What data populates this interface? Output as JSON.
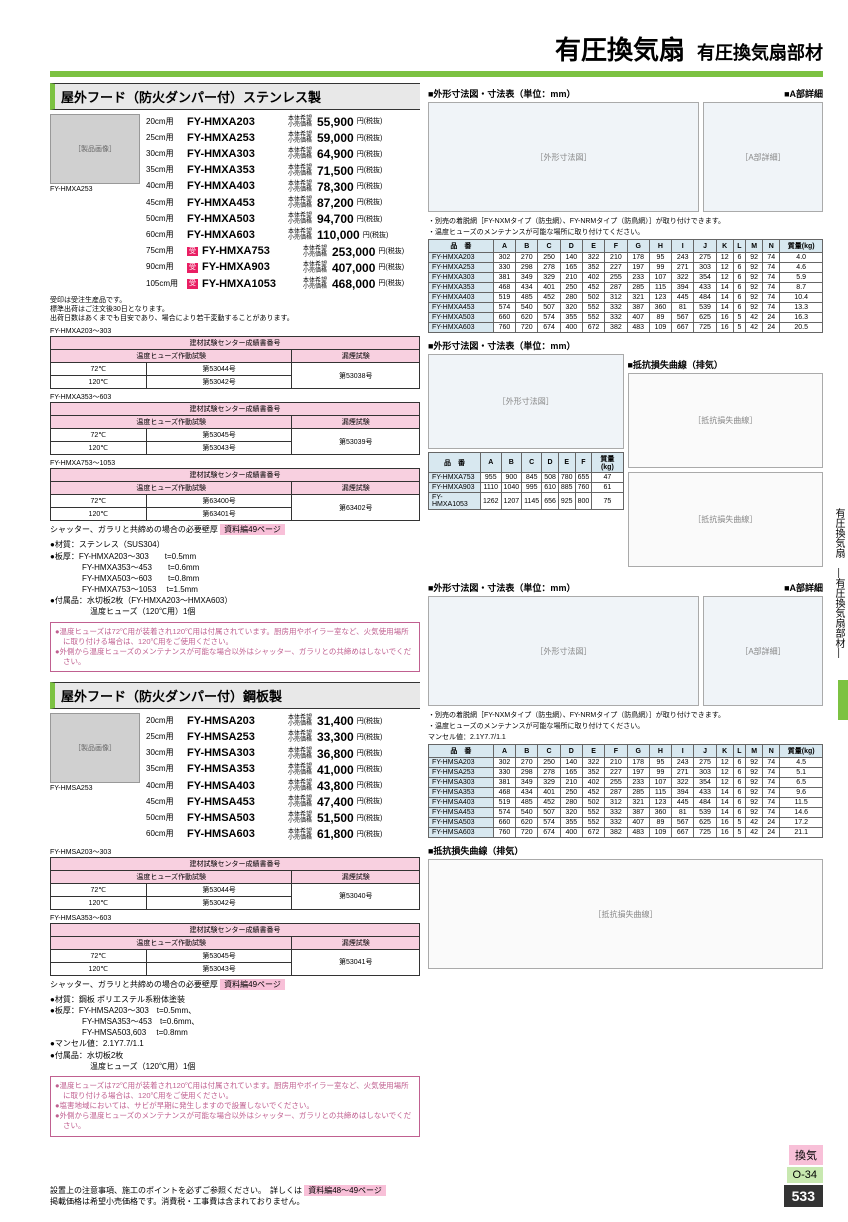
{
  "header": {
    "title": "有圧換気扇",
    "subtitle": "有圧換気扇部材"
  },
  "sec1": {
    "title": "屋外フード（防火ダンパー付）ステンレス製",
    "img_label": "FY-HMXA253",
    "prices": [
      {
        "size": "20cm用",
        "model": "FY-HMXA203",
        "price": "55,900"
      },
      {
        "size": "25cm用",
        "model": "FY-HMXA253",
        "price": "59,000"
      },
      {
        "size": "30cm用",
        "model": "FY-HMXA303",
        "price": "64,900"
      },
      {
        "size": "35cm用",
        "model": "FY-HMXA353",
        "price": "71,500"
      },
      {
        "size": "40cm用",
        "model": "FY-HMXA403",
        "price": "78,300"
      },
      {
        "size": "45cm用",
        "model": "FY-HMXA453",
        "price": "87,200"
      },
      {
        "size": "50cm用",
        "model": "FY-HMXA503",
        "price": "94,700"
      },
      {
        "size": "60cm用",
        "model": "FY-HMXA603",
        "price": "110,000"
      },
      {
        "size": "75cm用",
        "model": "FY-HMXA753",
        "price": "253,000",
        "badge": "受"
      },
      {
        "size": "90cm用",
        "model": "FY-HMXA903",
        "price": "407,000",
        "badge": "受"
      },
      {
        "size": "105cm用",
        "model": "FY-HMXA1053",
        "price": "468,000",
        "badge": "受"
      }
    ],
    "note1": "受印は受注生産品です。\n標準出荷はご注文後30日となります。\n出荷日数はあくまでも目安であり、場合により若干変動することがあります。",
    "cert": [
      {
        "range": "FY-HMXA203～303",
        "rows": [
          [
            "72℃",
            "第53044号",
            "第53038号"
          ],
          [
            "120℃",
            "第53042号",
            ""
          ]
        ]
      },
      {
        "range": "FY-HMXA353～603",
        "rows": [
          [
            "72℃",
            "第53045号",
            "第53039号"
          ],
          [
            "120℃",
            "第53043号",
            ""
          ]
        ]
      },
      {
        "range": "FY-HMXA753～1053",
        "rows": [
          [
            "72℃",
            "第63400号",
            "第63402号"
          ],
          [
            "120℃",
            "第63401号",
            ""
          ]
        ]
      }
    ],
    "ref": "資料編49ページ",
    "specs": [
      "●材質：ステンレス（SUS304）",
      "●板厚：FY-HMXA203～303　　t=0.5mm",
      "　　　　FY-HMXA353～453　　t=0.6mm",
      "　　　　FY-HMXA503～603　　t=0.8mm",
      "　　　　FY-HMXA753～1053　 t=1.5mm",
      "●付属品：水切板2枚（FY-HMXA203～HMXA603）",
      "　　　　　温度ヒューズ（120℃用）1個"
    ],
    "caution": [
      "●温度ヒューズは72℃用が装着され120℃用は付属されています。厨房用やボイラー室など、火気使用場所に取り付ける場合は、120℃用をご使用ください。",
      "●外側から温度ヒューズのメンテナンスが可能な場合以外はシャッター、ガラリとの共締めはしないでください。"
    ]
  },
  "sec2": {
    "title": "屋外フード（防火ダンパー付）鋼板製",
    "img_label": "FY-HMSA253",
    "prices": [
      {
        "size": "20cm用",
        "model": "FY-HMSA203",
        "price": "31,400"
      },
      {
        "size": "25cm用",
        "model": "FY-HMSA253",
        "price": "33,300"
      },
      {
        "size": "30cm用",
        "model": "FY-HMSA303",
        "price": "36,800"
      },
      {
        "size": "35cm用",
        "model": "FY-HMSA353",
        "price": "41,000"
      },
      {
        "size": "40cm用",
        "model": "FY-HMSA403",
        "price": "43,800"
      },
      {
        "size": "45cm用",
        "model": "FY-HMSA453",
        "price": "47,400"
      },
      {
        "size": "50cm用",
        "model": "FY-HMSA503",
        "price": "51,500"
      },
      {
        "size": "60cm用",
        "model": "FY-HMSA603",
        "price": "61,800"
      }
    ],
    "cert": [
      {
        "range": "FY-HMSA203～303",
        "rows": [
          [
            "72℃",
            "第53044号",
            "第53040号"
          ],
          [
            "120℃",
            "第53042号",
            ""
          ]
        ]
      },
      {
        "range": "FY-HMSA353～603",
        "rows": [
          [
            "72℃",
            "第53045号",
            "第53041号"
          ],
          [
            "120℃",
            "第53043号",
            ""
          ]
        ]
      }
    ],
    "ref": "資料編49ページ",
    "specs": [
      "●材質：鋼板 ポリエステル系粉体塗装",
      "●板厚：FY-HMSA203～303　t=0.5mm、",
      "　　　　FY-HMSA353～453　t=0.6mm、",
      "　　　　FY-HMSA503,603　 t=0.8mm",
      "●マンセル値：2.1Y7.7/1.1",
      "●付属品：水切板2枚",
      "　　　　　温度ヒューズ（120℃用）1個"
    ],
    "caution": [
      "●温度ヒューズは72℃用が装着され120℃用は付属されています。厨房用やボイラー室など、火気使用場所に取り付ける場合は、120℃用をご使用ください。",
      "●塩害地域においては、サビが早期に発生しますので設置しないでください。",
      "●外側から温度ヒューズのメンテナンスが可能な場合以外はシャッター、ガラリとの共締めはしないでください。"
    ]
  },
  "dim1": {
    "title": "■外形寸法図・寸法表（単位：mm）",
    "detail": "■A部詳細",
    "notes": [
      "・別売の着脱網［FY-NXMタイプ（防虫網）、FY-NRMタイプ（防鳥網）］が取り付けできます。",
      "・温度ヒューズのメンテナンスが可能な場所に取り付けてください。"
    ],
    "cols": [
      "品　番",
      "A",
      "B",
      "C",
      "D",
      "E",
      "F",
      "G",
      "H",
      "I",
      "J",
      "K",
      "L",
      "M",
      "N",
      "質量(kg)"
    ],
    "rows": [
      [
        "FY-HMXA203",
        "302",
        "270",
        "250",
        "140",
        "322",
        "210",
        "178",
        "95",
        "243",
        "275",
        "12",
        "6",
        "92",
        "74",
        "4.0"
      ],
      [
        "FY-HMXA253",
        "330",
        "298",
        "278",
        "165",
        "352",
        "227",
        "197",
        "99",
        "271",
        "303",
        "12",
        "6",
        "92",
        "74",
        "4.6"
      ],
      [
        "FY-HMXA303",
        "381",
        "349",
        "329",
        "210",
        "402",
        "255",
        "233",
        "107",
        "322",
        "354",
        "12",
        "6",
        "92",
        "74",
        "5.9"
      ],
      [
        "FY-HMXA353",
        "468",
        "434",
        "401",
        "250",
        "452",
        "287",
        "285",
        "115",
        "394",
        "433",
        "14",
        "6",
        "92",
        "74",
        "8.7"
      ],
      [
        "FY-HMXA403",
        "519",
        "485",
        "452",
        "280",
        "502",
        "312",
        "321",
        "123",
        "445",
        "484",
        "14",
        "6",
        "92",
        "74",
        "10.4"
      ],
      [
        "FY-HMXA453",
        "574",
        "540",
        "507",
        "320",
        "552",
        "332",
        "387",
        "360",
        "81",
        "539",
        "14",
        "6",
        "92",
        "74",
        "13.3"
      ],
      [
        "FY-HMXA503",
        "660",
        "620",
        "574",
        "355",
        "552",
        "332",
        "407",
        "89",
        "567",
        "625",
        "16",
        "5",
        "42",
        "24",
        "16.3"
      ],
      [
        "FY-HMXA603",
        "760",
        "720",
        "674",
        "400",
        "672",
        "382",
        "483",
        "109",
        "667",
        "725",
        "16",
        "5",
        "42",
        "24",
        "20.5"
      ]
    ]
  },
  "dim2": {
    "title": "■外形寸法図・寸法表（単位：mm）",
    "cols": [
      "品　番",
      "A",
      "B",
      "C",
      "D",
      "E",
      "F",
      "質量(kg)"
    ],
    "rows": [
      [
        "FY-HMXA753",
        "955",
        "900",
        "845",
        "508",
        "780",
        "655",
        "47"
      ],
      [
        "FY-HMXA903",
        "1110",
        "1040",
        "995",
        "610",
        "885",
        "760",
        "61"
      ],
      [
        "FY-HMXA1053",
        "1262",
        "1207",
        "1145",
        "656",
        "925",
        "800",
        "75"
      ]
    ],
    "chart": "■抵抗損失曲線（排気）"
  },
  "dim3": {
    "title": "■外形寸法図・寸法表（単位：mm）",
    "detail": "■A部詳細",
    "notes": [
      "・別売の着脱網［FY-NXMタイプ（防虫網）、FY-NRMタイプ（防鳥網）］が取り付けできます。",
      "・温度ヒューズのメンテナンスが可能な場所に取り付けてください。",
      "マンセル値：2.1Y7.7/1.1"
    ],
    "cols": [
      "品　番",
      "A",
      "B",
      "C",
      "D",
      "E",
      "F",
      "G",
      "H",
      "I",
      "J",
      "K",
      "L",
      "M",
      "N",
      "質量(kg)"
    ],
    "rows": [
      [
        "FY-HMSA203",
        "302",
        "270",
        "250",
        "140",
        "322",
        "210",
        "178",
        "95",
        "243",
        "275",
        "12",
        "6",
        "92",
        "74",
        "4.5"
      ],
      [
        "FY-HMSA253",
        "330",
        "298",
        "278",
        "165",
        "352",
        "227",
        "197",
        "99",
        "271",
        "303",
        "12",
        "6",
        "92",
        "74",
        "5.1"
      ],
      [
        "FY-HMSA303",
        "381",
        "349",
        "329",
        "210",
        "402",
        "255",
        "233",
        "107",
        "322",
        "354",
        "12",
        "6",
        "92",
        "74",
        "6.5"
      ],
      [
        "FY-HMSA353",
        "468",
        "434",
        "401",
        "250",
        "452",
        "287",
        "285",
        "115",
        "394",
        "433",
        "14",
        "6",
        "92",
        "74",
        "9.6"
      ],
      [
        "FY-HMSA403",
        "519",
        "485",
        "452",
        "280",
        "502",
        "312",
        "321",
        "123",
        "445",
        "484",
        "14",
        "6",
        "92",
        "74",
        "11.5"
      ],
      [
        "FY-HMSA453",
        "574",
        "540",
        "507",
        "320",
        "552",
        "332",
        "387",
        "360",
        "81",
        "539",
        "14",
        "6",
        "92",
        "74",
        "14.6"
      ],
      [
        "FY-HMSA503",
        "660",
        "620",
        "574",
        "355",
        "552",
        "332",
        "407",
        "89",
        "567",
        "625",
        "16",
        "5",
        "42",
        "24",
        "17.2"
      ],
      [
        "FY-HMSA603",
        "760",
        "720",
        "674",
        "400",
        "672",
        "382",
        "483",
        "109",
        "667",
        "725",
        "16",
        "5",
        "42",
        "24",
        "21.1"
      ]
    ],
    "chart": "■抵抗損失曲線（排気）"
  },
  "side": {
    "v1": "有圧換気扇",
    "v2": "―有圧換気扇部材―"
  },
  "footer": {
    "note": "設置上の注意事項、施工のポイントを必ずご参照ください。　詳しくは",
    "ref": "資料編48～49ページ",
    "note2": "掲載価格は希望小売価格です。消費税・工事費は含まれておりません。",
    "cat": "換気",
    "code": "O-34",
    "page": "533"
  }
}
